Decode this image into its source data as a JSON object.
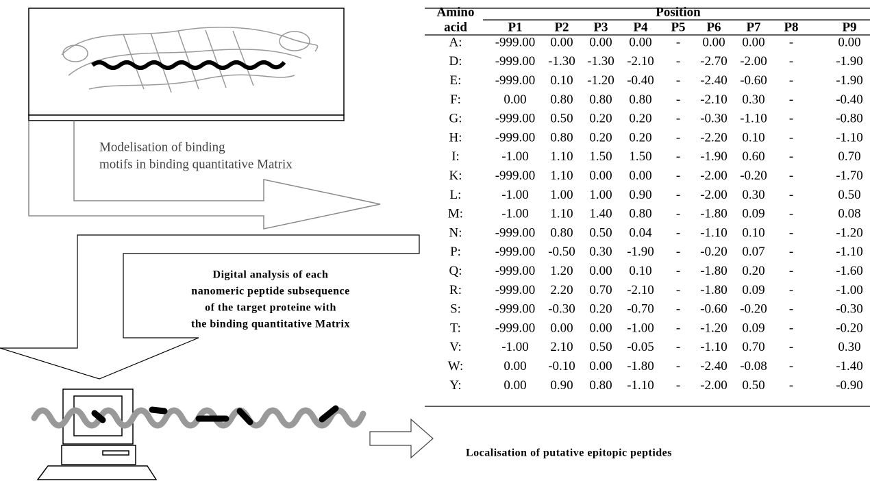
{
  "diagram": {
    "step1_lines": [
      "Modelisation of binding",
      "motifs in binding quantitative Matrix"
    ],
    "step2_lines": [
      "Digital analysis of each",
      "nanomeric peptide subsequence",
      "of the target proteine with",
      "the binding quantitative Matrix"
    ],
    "step3": "Localisation of putative epitopic peptides"
  },
  "table": {
    "corner": [
      "Amino",
      "acid"
    ],
    "group_header": "Position",
    "columns": [
      "P1",
      "P2",
      "P3",
      "P4",
      "P5",
      "P6",
      "P7",
      "P8",
      "P9"
    ],
    "rows": [
      [
        "A:",
        "-999.00",
        "0.00",
        "0.00",
        "0.00",
        "-",
        "0.00",
        "0.00",
        "-",
        "0.00"
      ],
      [
        "D:",
        "-999.00",
        "-1.30",
        "-1.30",
        "-2.10",
        "-",
        "-2.70",
        "-2.00",
        "-",
        "-1.90"
      ],
      [
        "E:",
        "-999.00",
        "0.10",
        "-1.20",
        "-0.40",
        "-",
        "-2.40",
        "-0.60",
        "-",
        "-1.90"
      ],
      [
        "F:",
        "0.00",
        "0.80",
        "0.80",
        "0.80",
        "-",
        "-2.10",
        "0.30",
        "-",
        "-0.40"
      ],
      [
        "G:",
        "-999.00",
        "0.50",
        "0.20",
        "0.20",
        "-",
        "-0.30",
        "-1.10",
        "-",
        "-0.80"
      ],
      [
        "H:",
        "-999.00",
        "0.80",
        "0.20",
        "0.20",
        "-",
        "-2.20",
        "0.10",
        "-",
        "-1.10"
      ],
      [
        "I:",
        "-1.00",
        "1.10",
        "1.50",
        "1.50",
        "-",
        "-1.90",
        "0.60",
        "-",
        "0.70"
      ],
      [
        "K:",
        "-999.00",
        "1.10",
        "0.00",
        "0.00",
        "-",
        "-2.00",
        "-0.20",
        "-",
        "-1.70"
      ],
      [
        "L:",
        "-1.00",
        "1.00",
        "1.00",
        "0.90",
        "-",
        "-2.00",
        "0.30",
        "-",
        "0.50"
      ],
      [
        "M:",
        "-1.00",
        "1.10",
        "1.40",
        "0.80",
        "-",
        "-1.80",
        "0.09",
        "-",
        "0.08"
      ],
      [
        "N:",
        "-999.00",
        "0.80",
        "0.50",
        "0.04",
        "-",
        "-1.10",
        "0.10",
        "-",
        "-1.20"
      ],
      [
        "P:",
        "-999.00",
        "-0.50",
        "0.30",
        "-1.90",
        "-",
        "-0.20",
        "0.07",
        "-",
        "-1.10"
      ],
      [
        "Q:",
        "-999.00",
        "1.20",
        "0.00",
        "0.10",
        "-",
        "-1.80",
        "0.20",
        "-",
        "-1.60"
      ],
      [
        "R:",
        "-999.00",
        "2.20",
        "0.70",
        "-2.10",
        "-",
        "-1.80",
        "0.09",
        "-",
        "-1.00"
      ],
      [
        "S:",
        "-999.00",
        "-0.30",
        "0.20",
        "-0.70",
        "-",
        "-0.60",
        "-0.20",
        "-",
        "-0.30"
      ],
      [
        "T:",
        "-999.00",
        "0.00",
        "0.00",
        "-1.00",
        "-",
        "-1.20",
        "0.09",
        "-",
        "-0.20"
      ],
      [
        "V:",
        "-1.00",
        "2.10",
        "0.50",
        "-0.05",
        "-",
        "-1.10",
        "0.70",
        "-",
        "0.30"
      ],
      [
        "W:",
        "0.00",
        "-0.10",
        "0.00",
        "-1.80",
        "-",
        "-2.40",
        "-0.08",
        "-",
        "-1.40"
      ],
      [
        "Y:",
        "0.00",
        "0.90",
        "0.80",
        "-1.10",
        "-",
        "-2.00",
        "0.50",
        "-",
        "-0.90"
      ]
    ]
  }
}
